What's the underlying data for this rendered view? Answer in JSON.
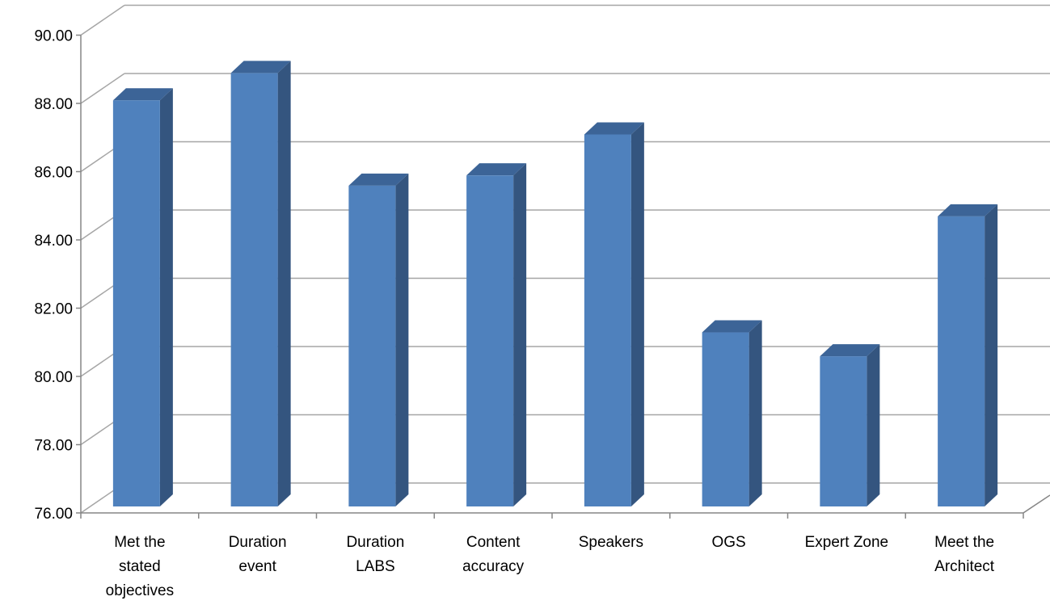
{
  "chart_data": {
    "type": "bar",
    "style": "3d-column",
    "categories": [
      "Met the stated objectives",
      "Duration event",
      "Duration LABS",
      "Content accuracy",
      "Speakers",
      "OGS",
      "Expert Zone",
      "Meet the Architect"
    ],
    "category_lines": [
      [
        "Met the",
        "stated",
        "objectives"
      ],
      [
        "Duration",
        "event"
      ],
      [
        "Duration",
        "LABS"
      ],
      [
        "Content",
        "accuracy"
      ],
      [
        "Speakers"
      ],
      [
        "OGS"
      ],
      [
        "Expert Zone"
      ],
      [
        "Meet the",
        "Architect"
      ]
    ],
    "values": [
      87.9,
      88.7,
      85.4,
      85.7,
      86.9,
      81.1,
      80.4,
      84.5
    ],
    "ylim": [
      76,
      90
    ],
    "ytick_step": 2,
    "ytick_labels": [
      "76.00",
      "78.00",
      "80.00",
      "82.00",
      "84.00",
      "86.00",
      "88.00",
      "90.00"
    ],
    "grid": true,
    "legend": "none",
    "colors": {
      "front": "#4F81BD",
      "side": "#34557F",
      "top": "#3C6497",
      "grid": "#A6A6A6",
      "axis": "#868686"
    }
  }
}
